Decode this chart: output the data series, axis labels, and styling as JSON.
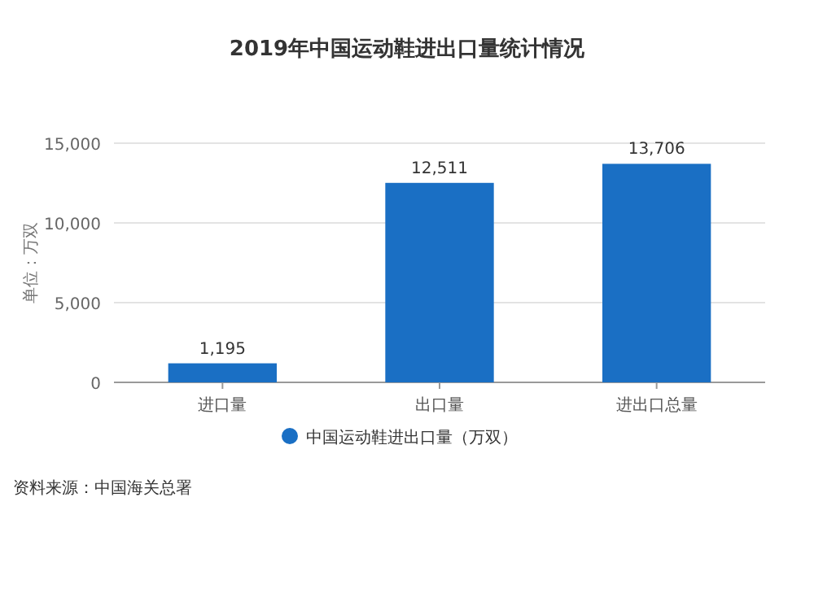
{
  "chart_data": {
    "type": "bar",
    "title": "2019年中国运动鞋进出口量统计情况",
    "ylabel": "单位：万双",
    "categories": [
      "进口量",
      "出口量",
      "进出口总量"
    ],
    "series": [
      {
        "name": "中国运动鞋进出口量（万双）",
        "color": "#1a6fc4",
        "values": [
          1195,
          12511,
          13706
        ]
      }
    ],
    "value_labels": [
      "1,195",
      "12,511",
      "13,706"
    ],
    "ylim": [
      0,
      15000
    ],
    "yticks": [
      {
        "value": 0,
        "label": "0"
      },
      {
        "value": 5000,
        "label": "5,000"
      },
      {
        "value": 10000,
        "label": "10,000"
      },
      {
        "value": 15000,
        "label": "15,000"
      }
    ],
    "grid": "y",
    "legend": "bottom",
    "annotations": [
      "资料来源：中国海关总署"
    ]
  }
}
